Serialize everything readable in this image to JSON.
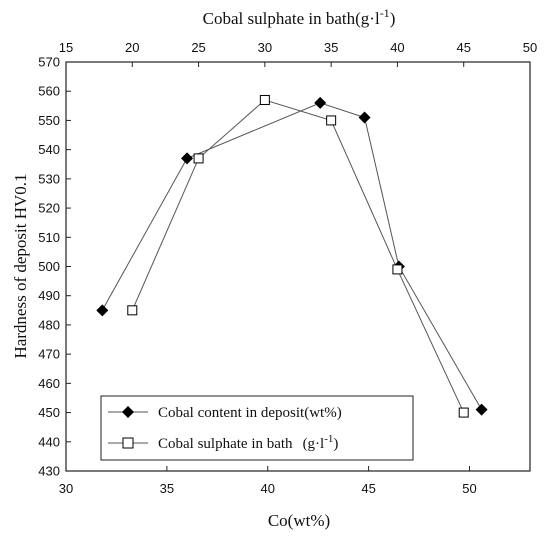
{
  "chart_data": {
    "type": "line",
    "x_bottom": {
      "label": "Co(wt%)",
      "ticks": [
        30,
        35,
        40,
        45,
        50
      ],
      "range": [
        30,
        53
      ]
    },
    "x_top": {
      "label_main": "Cobal sulphate in bath(g·l",
      "label_sup": "-1",
      "label_end": ")",
      "ticks": [
        15,
        20,
        25,
        30,
        35,
        40,
        45,
        50
      ],
      "range": [
        15,
        50
      ]
    },
    "y": {
      "label": "Hardness of deposit HV0.1",
      "ticks": [
        430,
        440,
        450,
        460,
        470,
        480,
        490,
        500,
        510,
        520,
        530,
        540,
        550,
        560,
        570
      ],
      "range": [
        430,
        570
      ]
    },
    "series": [
      {
        "name": "Cobal content in deposit(wt%)",
        "axis": "bottom",
        "marker": "filled-diamond",
        "color": "#000000",
        "x": [
          31.8,
          36.0,
          42.6,
          44.8,
          46.5,
          50.6
        ],
        "y": [
          485,
          537,
          556,
          551,
          500,
          451
        ]
      },
      {
        "name": "Cobal sulphate in bath",
        "name_unit_main": "(g·l",
        "name_unit_sup": "-1",
        "name_unit_end": ")",
        "axis": "top",
        "marker": "open-square",
        "color": "#000000",
        "x": [
          20,
          25,
          30,
          35,
          40,
          45
        ],
        "y": [
          485,
          537,
          557,
          550,
          499,
          450
        ]
      }
    ],
    "legend_position": "bottom-left",
    "grid": false
  }
}
